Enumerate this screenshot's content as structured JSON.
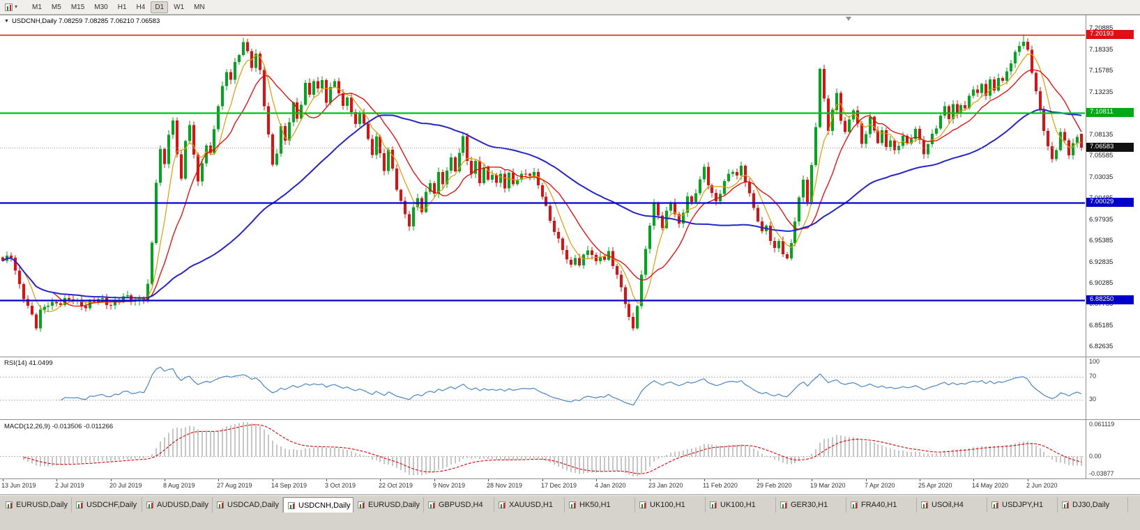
{
  "toolbar": {
    "chart_type_icon": "candlestick-chart-icon",
    "dropdown_icon": "chevron-down",
    "timeframes": [
      "M1",
      "M5",
      "M15",
      "M30",
      "H1",
      "H4",
      "D1",
      "W1",
      "MN"
    ],
    "active_timeframe": "D1"
  },
  "chart": {
    "symbol": "USDCNH",
    "period": "Daily",
    "title_line": "USDCNH,Daily 7.08259 7.08285 7.06210 7.06583",
    "ohlc": {
      "open": "7.08259",
      "high": "7.08285",
      "low": "7.06210",
      "close": "7.06583"
    }
  },
  "chart_data": {
    "type": "candlestick",
    "symbol": "USDCNH",
    "timeframe": "Daily",
    "candle_colors": {
      "up": "#00a61c",
      "down": "#e01010"
    },
    "y_axis": {
      "top_value": 7.225,
      "bottom_value": 6.815,
      "ticks": [
        "7.20885",
        "7.18335",
        "7.15785",
        "7.13235",
        "7.10685",
        "7.08135",
        "7.05585",
        "7.03035",
        "7.00485",
        "6.97935",
        "6.95385",
        "6.92835",
        "6.90285",
        "6.87735",
        "6.85185",
        "6.82635"
      ]
    },
    "x_axis": {
      "labels": [
        "13 Jun 2019",
        "2 Jul 2019",
        "20 Jul 2019",
        "8 Aug 2019",
        "27 Aug 2019",
        "14 Sep 2019",
        "3 Oct 2019",
        "22 Oct 2019",
        "9 Nov 2019",
        "28 Nov 2019",
        "17 Dec 2019",
        "4 Jan 2020",
        "23 Jan 2020",
        "11 Feb 2020",
        "29 Feb 2020",
        "19 Mar 2020",
        "7 Apr 2020",
        "25 Apr 2020",
        "14 May 2020",
        "2 Jun 2020"
      ],
      "days_per_label": 13
    },
    "levels": [
      {
        "price": 7.20193,
        "label": "7.20193",
        "line_color": "#dd1111",
        "badge_color": "#dd1111",
        "width": 1.6,
        "style": "solid",
        "kind": "resistance-line"
      },
      {
        "price": 7.10811,
        "label": "7.10811",
        "line_color": "#00c01e",
        "badge_color": "#00a81a",
        "width": 2.2,
        "style": "solid",
        "kind": "horizontal-line"
      },
      {
        "price": 7.06583,
        "label": "7.06583",
        "line_color": "#9a9a9a",
        "badge_color": "#111111",
        "width": 1,
        "style": "dotted",
        "kind": "bid-price"
      },
      {
        "price": 7.00029,
        "label": "7.00029",
        "line_color": "#0000cd",
        "badge_color": "#0000cd",
        "width": 2.2,
        "style": "solid",
        "kind": "support-line"
      },
      {
        "price": 6.8825,
        "label": "6.88250",
        "line_color": "#0000cd",
        "badge_color": "#0000cd",
        "width": 2.2,
        "style": "solid",
        "kind": "support-line"
      }
    ],
    "current_ohlc": {
      "open": 7.08259,
      "high": 7.08285,
      "low": 7.0621,
      "close": 7.06583
    },
    "candles_visible": 261,
    "indicators": {
      "moving_averages": [
        {
          "period": 6,
          "color": "#e09c00",
          "width": 1.2
        },
        {
          "period": 13,
          "color": "#f40000",
          "width": 1.3
        },
        {
          "period": 55,
          "color": "#2424cc",
          "width": 2
        }
      ],
      "rsi": {
        "label": "RSI(14) 41.0499",
        "period": 14,
        "current": 41.0499,
        "levels": [
          70,
          30
        ],
        "scale_labels": [
          "100",
          "70",
          "30"
        ],
        "color": "#4a86c8"
      },
      "macd": {
        "label": "MACD(12,26,9) -0.013506 -0.011266",
        "fast": 12,
        "slow": 26,
        "signal": 9,
        "current_main": -0.013506,
        "current_signal": -0.011266,
        "scale_labels": [
          "0.061119",
          "0.00",
          "-0.03877"
        ],
        "histogram_color": "#8c8c8c",
        "signal_color": "#e00000"
      }
    },
    "price_path": [
      [
        0,
        6.928
      ],
      [
        2,
        6.937
      ],
      [
        4,
        6.902
      ],
      [
        6,
        6.874
      ],
      [
        8,
        6.85
      ],
      [
        9,
        6.869
      ],
      [
        11,
        6.881
      ],
      [
        14,
        6.878
      ],
      [
        17,
        6.885
      ],
      [
        20,
        6.876
      ],
      [
        23,
        6.883
      ],
      [
        26,
        6.879
      ],
      [
        29,
        6.886
      ],
      [
        32,
        6.881
      ],
      [
        34,
        6.888
      ],
      [
        35,
        6.902
      ],
      [
        36,
        6.95
      ],
      [
        37,
        7.025
      ],
      [
        38,
        7.06
      ],
      [
        39,
        7.045
      ],
      [
        40,
        7.085
      ],
      [
        41,
        7.098
      ],
      [
        42,
        7.06
      ],
      [
        43,
        7.032
      ],
      [
        44,
        7.07
      ],
      [
        45,
        7.092
      ],
      [
        46,
        7.058
      ],
      [
        47,
        7.022
      ],
      [
        48,
        7.05
      ],
      [
        49,
        7.072
      ],
      [
        50,
        7.058
      ],
      [
        51,
        7.09
      ],
      [
        52,
        7.115
      ],
      [
        53,
        7.135
      ],
      [
        54,
        7.158
      ],
      [
        55,
        7.148
      ],
      [
        56,
        7.168
      ],
      [
        57,
        7.182
      ],
      [
        58,
        7.193
      ],
      [
        59,
        7.179
      ],
      [
        60,
        7.163
      ],
      [
        61,
        7.176
      ],
      [
        62,
        7.157
      ],
      [
        63,
        7.12
      ],
      [
        64,
        7.082
      ],
      [
        65,
        7.046
      ],
      [
        66,
        7.062
      ],
      [
        67,
        7.088
      ],
      [
        68,
        7.072
      ],
      [
        69,
        7.098
      ],
      [
        70,
        7.118
      ],
      [
        71,
        7.103
      ],
      [
        72,
        7.122
      ],
      [
        73,
        7.142
      ],
      [
        74,
        7.13
      ],
      [
        75,
        7.146
      ],
      [
        76,
        7.132
      ],
      [
        77,
        7.148
      ],
      [
        78,
        7.122
      ],
      [
        79,
        7.138
      ],
      [
        80,
        7.15
      ],
      [
        81,
        7.132
      ],
      [
        82,
        7.112
      ],
      [
        83,
        7.127
      ],
      [
        84,
        7.107
      ],
      [
        85,
        7.092
      ],
      [
        86,
        7.112
      ],
      [
        87,
        7.096
      ],
      [
        88,
        7.076
      ],
      [
        89,
        7.06
      ],
      [
        90,
        7.076
      ],
      [
        91,
        7.056
      ],
      [
        92,
        7.04
      ],
      [
        93,
        7.062
      ],
      [
        94,
        7.042
      ],
      [
        95,
        7.02
      ],
      [
        96,
        7.0
      ],
      [
        97,
        6.985
      ],
      [
        98,
        6.972
      ],
      [
        99,
        6.99
      ],
      [
        100,
        7.006
      ],
      [
        101,
        6.992
      ],
      [
        102,
        7.012
      ],
      [
        103,
        7.026
      ],
      [
        104,
        7.012
      ],
      [
        105,
        7.032
      ],
      [
        106,
        7.022
      ],
      [
        107,
        7.038
      ],
      [
        108,
        7.052
      ],
      [
        109,
        7.042
      ],
      [
        110,
        7.062
      ],
      [
        111,
        7.078
      ],
      [
        112,
        7.052
      ],
      [
        113,
        7.032
      ],
      [
        114,
        7.046
      ],
      [
        115,
        7.026
      ],
      [
        116,
        7.042
      ],
      [
        117,
        7.028
      ],
      [
        118,
        7.038
      ],
      [
        119,
        7.022
      ],
      [
        120,
        7.032
      ],
      [
        121,
        7.018
      ],
      [
        122,
        7.032
      ],
      [
        123,
        7.022
      ],
      [
        124,
        7.032
      ],
      [
        126,
        7.036
      ],
      [
        128,
        7.032
      ],
      [
        130,
        7.008
      ],
      [
        131,
        6.994
      ],
      [
        132,
        6.982
      ],
      [
        133,
        6.968
      ],
      [
        134,
        6.954
      ],
      [
        135,
        6.944
      ],
      [
        136,
        6.93
      ],
      [
        137,
        6.921
      ],
      [
        138,
        6.936
      ],
      [
        139,
        6.926
      ],
      [
        140,
        6.937
      ],
      [
        141,
        6.947
      ],
      [
        142,
        6.936
      ],
      [
        143,
        6.926
      ],
      [
        144,
        6.936
      ],
      [
        145,
        6.929
      ],
      [
        146,
        6.941
      ],
      [
        147,
        6.929
      ],
      [
        148,
        6.913
      ],
      [
        149,
        6.898
      ],
      [
        150,
        6.88
      ],
      [
        151,
        6.858
      ],
      [
        152,
        6.847
      ],
      [
        153,
        6.878
      ],
      [
        154,
        6.912
      ],
      [
        155,
        6.947
      ],
      [
        156,
        6.976
      ],
      [
        157,
        6.996
      ],
      [
        158,
        6.984
      ],
      [
        159,
        6.969
      ],
      [
        160,
        6.986
      ],
      [
        161,
        7.002
      ],
      [
        162,
        6.989
      ],
      [
        163,
        6.974
      ],
      [
        164,
        6.991
      ],
      [
        165,
        7.007
      ],
      [
        166,
        6.996
      ],
      [
        167,
        7.012
      ],
      [
        168,
        7.027
      ],
      [
        169,
        7.042
      ],
      [
        170,
        7.026
      ],
      [
        171,
        7.012
      ],
      [
        172,
        7.0
      ],
      [
        173,
        7.012
      ],
      [
        174,
        7.022
      ],
      [
        175,
        7.032
      ],
      [
        176,
        7.04
      ],
      [
        177,
        7.032
      ],
      [
        178,
        7.046
      ],
      [
        179,
        7.028
      ],
      [
        180,
        7.008
      ],
      [
        181,
        6.992
      ],
      [
        182,
        6.978
      ],
      [
        183,
        6.962
      ],
      [
        184,
        6.974
      ],
      [
        185,
        6.958
      ],
      [
        186,
        6.944
      ],
      [
        187,
        6.956
      ],
      [
        188,
        6.938
      ],
      [
        189,
        6.928
      ],
      [
        190,
        6.952
      ],
      [
        191,
        6.978
      ],
      [
        192,
        7.005
      ],
      [
        193,
        7.032
      ],
      [
        194,
        7.002
      ],
      [
        195,
        7.042
      ],
      [
        196,
        7.092
      ],
      [
        197,
        7.158
      ],
      [
        198,
        7.122
      ],
      [
        199,
        7.09
      ],
      [
        200,
        7.112
      ],
      [
        201,
        7.132
      ],
      [
        202,
        7.102
      ],
      [
        203,
        7.082
      ],
      [
        204,
        7.097
      ],
      [
        205,
        7.112
      ],
      [
        206,
        7.092
      ],
      [
        207,
        7.072
      ],
      [
        208,
        7.087
      ],
      [
        209,
        7.102
      ],
      [
        210,
        7.087
      ],
      [
        211,
        7.072
      ],
      [
        212,
        7.082
      ],
      [
        213,
        7.067
      ],
      [
        214,
        7.077
      ],
      [
        215,
        7.062
      ],
      [
        216,
        7.072
      ],
      [
        217,
        7.082
      ],
      [
        218,
        7.067
      ],
      [
        219,
        7.077
      ],
      [
        220,
        7.087
      ],
      [
        221,
        7.072
      ],
      [
        222,
        7.062
      ],
      [
        223,
        7.072
      ],
      [
        224,
        7.082
      ],
      [
        225,
        7.092
      ],
      [
        226,
        7.102
      ],
      [
        227,
        7.112
      ],
      [
        228,
        7.102
      ],
      [
        229,
        7.117
      ],
      [
        230,
        7.107
      ],
      [
        231,
        7.122
      ],
      [
        232,
        7.112
      ],
      [
        233,
        7.127
      ],
      [
        234,
        7.137
      ],
      [
        235,
        7.127
      ],
      [
        236,
        7.142
      ],
      [
        237,
        7.132
      ],
      [
        238,
        7.147
      ],
      [
        239,
        7.137
      ],
      [
        240,
        7.152
      ],
      [
        241,
        7.142
      ],
      [
        242,
        7.157
      ],
      [
        243,
        7.167
      ],
      [
        244,
        7.178
      ],
      [
        245,
        7.192
      ],
      [
        246,
        7.196
      ],
      [
        247,
        7.182
      ],
      [
        248,
        7.158
      ],
      [
        249,
        7.132
      ],
      [
        250,
        7.108
      ],
      [
        251,
        7.088
      ],
      [
        252,
        7.068
      ],
      [
        253,
        7.052
      ],
      [
        254,
        7.068
      ],
      [
        255,
        7.084
      ],
      [
        256,
        7.072
      ],
      [
        257,
        7.058
      ],
      [
        258,
        7.068
      ],
      [
        259,
        7.078
      ],
      [
        260,
        7.08
      ]
    ]
  },
  "tabs": {
    "active_index": 4,
    "items": [
      "EURUSD,Daily",
      "USDCHF,Daily",
      "AUDUSD,Daily",
      "USDCAD,Daily",
      "USDCNH,Daily",
      "EURUSD,Daily",
      "GBPUSD,H4",
      "XAUUSD,H1",
      "HK50,H1",
      "UK100,H1",
      "UK100,H1",
      "GER30,H1",
      "FRA40,H1",
      "USOil,H4",
      "USDJPY,H1",
      "DJ30,Daily"
    ]
  }
}
